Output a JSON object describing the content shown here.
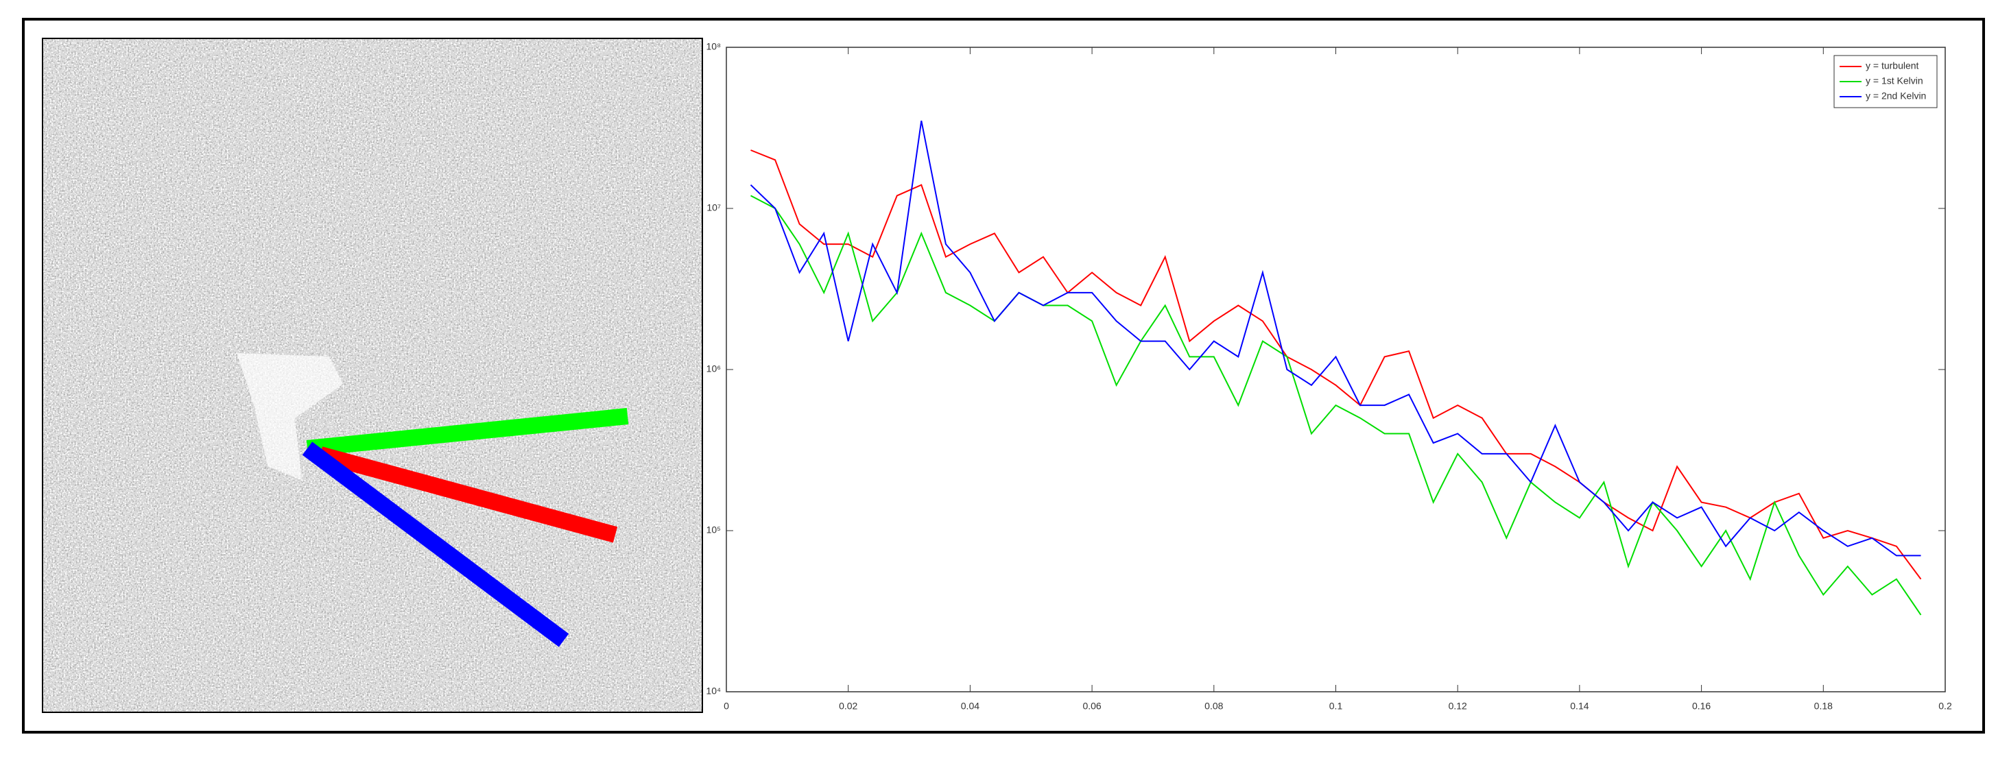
{
  "chart_data": {
    "type": "line",
    "x": [
      0.004,
      0.008,
      0.012,
      0.016,
      0.02,
      0.024,
      0.028,
      0.032,
      0.036,
      0.04,
      0.044,
      0.048,
      0.052,
      0.056,
      0.06,
      0.064,
      0.068,
      0.072,
      0.076,
      0.08,
      0.084,
      0.088,
      0.092,
      0.096,
      0.1,
      0.104,
      0.108,
      0.112,
      0.116,
      0.12,
      0.124,
      0.128,
      0.132,
      0.136,
      0.14,
      0.144,
      0.148,
      0.152,
      0.156,
      0.16,
      0.164,
      0.168,
      0.172,
      0.176,
      0.18,
      0.184,
      0.188,
      0.192,
      0.196
    ],
    "series": [
      {
        "name": "y = turbulent",
        "color": "#ff0000",
        "values": [
          23000000,
          20000000,
          8000000,
          6000000,
          6000000,
          5000000,
          12000000,
          14000000,
          5000000,
          6000000,
          7000000,
          4000000,
          5000000,
          3000000,
          4000000,
          3000000,
          2500000,
          5000000,
          1500000,
          2000000,
          2500000,
          2000000,
          1200000,
          1000000,
          800000,
          600000,
          1200000,
          1300000,
          500000,
          600000,
          500000,
          300000,
          300000,
          250000,
          200000,
          150000,
          120000,
          100000,
          250000,
          150000,
          140000,
          120000,
          150000,
          170000,
          90000,
          100000,
          90000,
          80000,
          50000
        ]
      },
      {
        "name": "y = 1st Kelvin",
        "color": "#00dd00",
        "values": [
          12000000,
          10000000,
          6000000,
          3000000,
          7000000,
          2000000,
          3000000,
          7000000,
          3000000,
          2500000,
          2000000,
          3000000,
          2500000,
          2500000,
          2000000,
          800000,
          1500000,
          2500000,
          1200000,
          1200000,
          600000,
          1500000,
          1200000,
          400000,
          600000,
          500000,
          400000,
          400000,
          150000,
          300000,
          200000,
          90000,
          200000,
          150000,
          120000,
          200000,
          60000,
          150000,
          100000,
          60000,
          100000,
          50000,
          150000,
          70000,
          40000,
          60000,
          40000,
          50000,
          30000
        ]
      },
      {
        "name": "y = 2nd Kelvin",
        "color": "#0000ff",
        "values": [
          14000000,
          10000000,
          4000000,
          7000000,
          1500000,
          6000000,
          3000000,
          35000000,
          6000000,
          4000000,
          2000000,
          3000000,
          2500000,
          3000000,
          3000000,
          2000000,
          1500000,
          1500000,
          1000000,
          1500000,
          1200000,
          4000000,
          1000000,
          800000,
          1200000,
          600000,
          600000,
          700000,
          350000,
          400000,
          300000,
          300000,
          200000,
          450000,
          200000,
          150000,
          100000,
          150000,
          120000,
          140000,
          80000,
          120000,
          100000,
          130000,
          100000,
          80000,
          90000,
          70000,
          70000
        ]
      }
    ],
    "xlim": [
      0,
      0.2
    ],
    "xticks": [
      0,
      0.02,
      0.04,
      0.06,
      0.08,
      0.1,
      0.12,
      0.14,
      0.16,
      0.18,
      0.2
    ],
    "ylim": [
      10000,
      100000000
    ],
    "yticks": [
      {
        "value": 10000,
        "label": "10⁴"
      },
      {
        "value": 100000,
        "label": "10⁵"
      },
      {
        "value": 1000000,
        "label": "10⁶"
      },
      {
        "value": 10000000,
        "label": "10⁷"
      },
      {
        "value": 100000000,
        "label": "10⁸"
      }
    ],
    "log_y": true,
    "grid": false,
    "legend": "top-right"
  }
}
